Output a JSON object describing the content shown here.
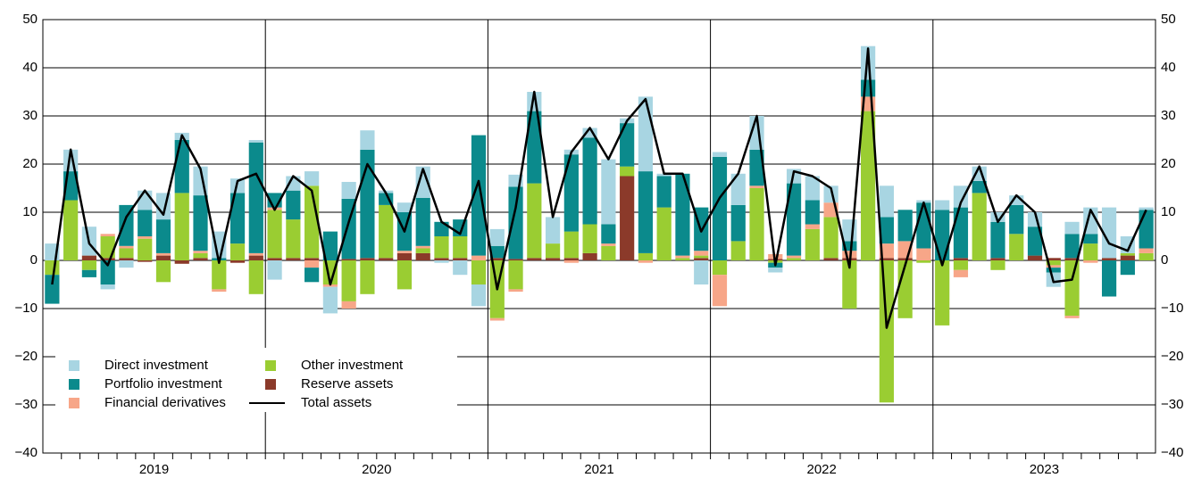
{
  "chart_data": {
    "type": "bar",
    "categories": [
      null,
      null,
      null,
      null,
      null,
      null,
      null,
      null,
      null,
      null,
      null,
      null,
      null,
      null,
      null,
      null,
      null,
      null,
      null,
      null,
      null,
      null,
      null,
      null,
      null,
      null,
      null,
      null,
      null,
      null,
      null,
      null,
      null,
      null,
      null,
      null,
      null,
      null,
      null,
      null,
      null,
      null,
      null,
      null,
      null,
      null,
      null,
      null,
      null,
      null,
      null,
      null,
      null,
      null,
      null,
      null,
      null,
      null,
      null,
      null
    ],
    "category_groups": [
      "2019",
      "2020",
      "2021",
      "2022",
      "2023"
    ],
    "series": [
      {
        "name": "Direct investment",
        "color": "#a8d5e2",
        "values": [
          3.5,
          4.5,
          6,
          -1,
          -1.5,
          4,
          5.5,
          1.5,
          6,
          5.5,
          3,
          0.5,
          -4,
          3,
          3,
          -5.5,
          3.5,
          4,
          0.5,
          2,
          6.5,
          -0.5,
          -3,
          -4.5,
          3.5,
          2.5,
          4,
          5.5,
          1,
          2,
          13.5,
          1,
          15.5,
          0.5,
          0,
          -5,
          1,
          6.5,
          7,
          -1,
          3,
          5,
          3.5,
          4.5,
          7,
          6.5,
          0,
          0.5,
          2,
          4.5,
          3,
          2,
          2,
          3,
          -3,
          2.5,
          5.5,
          10.5,
          3.5,
          0.5
        ]
      },
      {
        "name": "Portfolio investment",
        "color": "#0b8a8c",
        "values": [
          -6,
          6,
          -1.5,
          -5,
          8.5,
          5.5,
          7,
          11,
          11.5,
          0.5,
          10.5,
          23,
          3,
          6,
          -3,
          6,
          12.5,
          22.5,
          2.5,
          8,
          10,
          3,
          3.5,
          25,
          2.5,
          15,
          15,
          0,
          16,
          18,
          4,
          9,
          17,
          6.5,
          17,
          9,
          21.5,
          7.5,
          7.5,
          -1,
          15,
          5,
          0,
          2,
          3.5,
          5.5,
          6.5,
          9.5,
          10.5,
          10.5,
          2.5,
          7.5,
          6,
          6,
          -1,
          5,
          2,
          -7.5,
          -3,
          8
        ]
      },
      {
        "name": "Financial derivatives",
        "color": "#f7a688",
        "values": [
          0,
          0,
          0,
          0.5,
          0.5,
          0.5,
          0.5,
          0,
          0.5,
          -0.5,
          0,
          0.5,
          0.5,
          0,
          -1.5,
          -0.5,
          -1.5,
          0,
          0,
          0.5,
          0.5,
          0,
          0,
          1,
          -0.5,
          -0.5,
          0,
          0,
          -0.5,
          0,
          0.5,
          0,
          -0.5,
          0,
          0.5,
          1,
          -6.5,
          0,
          0.5,
          1,
          0.5,
          1,
          3,
          1.5,
          3,
          3,
          3.5,
          2.5,
          0,
          -1.5,
          0,
          0,
          0,
          0,
          -0.5,
          -0.5,
          -0.5,
          0,
          0,
          1
        ]
      },
      {
        "name": "Other investment",
        "color": "#9acd32",
        "values": [
          -3,
          12.5,
          -2,
          4.5,
          2,
          4.5,
          -4.5,
          14,
          1,
          -6,
          3.5,
          -7,
          10,
          8,
          15,
          -5,
          -8.5,
          -7,
          11,
          -6,
          1,
          4.5,
          4.5,
          -5,
          -12,
          -6,
          15.5,
          3,
          5.5,
          6,
          3,
          2,
          1.5,
          11,
          0.5,
          0.5,
          -3,
          4,
          15,
          -0.5,
          0.5,
          6.5,
          8.5,
          -10,
          31,
          -29.5,
          -12,
          -0.5,
          -13.5,
          -2,
          14,
          -2,
          5.5,
          0,
          -1,
          -11.5,
          3.5,
          0,
          0.5,
          1.5
        ]
      },
      {
        "name": "Reserve assets",
        "color": "#8b3a2a",
        "values": [
          0,
          0,
          1,
          0.5,
          0.5,
          -0.3,
          1,
          -0.7,
          0.5,
          0,
          -0.5,
          1,
          0.5,
          0.5,
          0.5,
          0,
          0.3,
          0.5,
          0.5,
          1.5,
          1.5,
          0.5,
          0.5,
          0,
          0.5,
          0.3,
          0.5,
          0.5,
          0.5,
          1.5,
          0,
          17.5,
          0,
          0,
          0,
          0.5,
          0,
          0,
          0,
          0.3,
          0,
          0,
          0.5,
          0.5,
          0,
          0.5,
          0.5,
          0,
          0,
          0.5,
          0,
          0.5,
          0,
          1,
          0.5,
          0.5,
          0,
          0.5,
          1,
          0
        ]
      },
      {
        "name": "Total assets",
        "color": "#000000",
        "type": "line",
        "values": [
          -5,
          23,
          3.5,
          -1,
          9,
          14.5,
          9.5,
          26,
          19,
          -0.5,
          16.5,
          18,
          10.5,
          17.5,
          14.5,
          -5,
          8,
          20,
          14,
          6,
          19,
          8,
          5.5,
          16.5,
          -6,
          11,
          35,
          9,
          22.5,
          27.5,
          21,
          29,
          33.5,
          18,
          18,
          6,
          13,
          18,
          30,
          -1,
          18.5,
          17.5,
          15,
          -1.5,
          44,
          -14,
          -1,
          12,
          -1,
          12,
          19.5,
          8,
          13.5,
          10,
          -4.5,
          -4,
          10.5,
          3.5,
          2,
          10.5
        ]
      }
    ],
    "ylim": [
      -40,
      50
    ],
    "yticks": [
      {
        "value": -40,
        "label": "−40"
      },
      {
        "value": -30,
        "label": "−30"
      },
      {
        "value": -20,
        "label": "−20"
      },
      {
        "value": -10,
        "label": "−10"
      },
      0,
      10,
      20,
      30,
      40,
      50
    ],
    "y2lim": [
      -40,
      50
    ],
    "y2ticks": [
      {
        "value": -40,
        "label": "−40"
      },
      {
        "value": -30,
        "label": "−30"
      },
      {
        "value": -20,
        "label": "−20"
      },
      {
        "value": -10,
        "label": "−10"
      },
      0,
      10,
      20,
      30,
      40,
      50
    ],
    "grid": true,
    "legend": "lower-left"
  }
}
